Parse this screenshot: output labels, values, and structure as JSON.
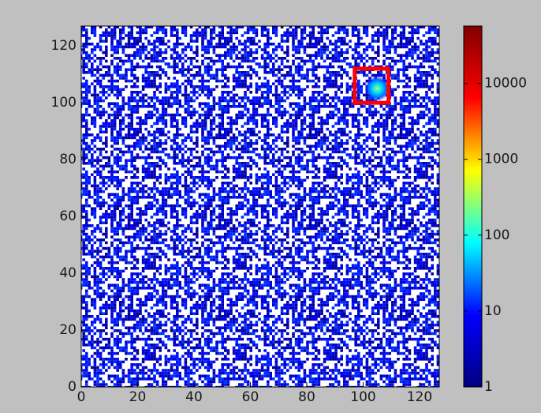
{
  "chart_data": {
    "type": "heatmap",
    "xlim": [
      0,
      127
    ],
    "ylim": [
      0,
      127
    ],
    "xticks": [
      0,
      20,
      40,
      60,
      80,
      100,
      120
    ],
    "yticks": [
      0,
      20,
      40,
      60,
      80,
      100,
      120
    ],
    "colorbar": {
      "scale": "log",
      "lim": [
        1,
        57000
      ],
      "ticks": [
        1,
        10,
        100,
        1000,
        10000
      ],
      "colors": [
        "#00007f",
        "#0000ff",
        "#00ffff",
        "#ffff00",
        "#ff0000",
        "#7f0000"
      ]
    },
    "hotspot": {
      "x": 105,
      "y": 105
    },
    "highlight_box": {
      "x": [
        97,
        109
      ],
      "y": [
        100,
        112
      ],
      "color": "#ff0000"
    }
  }
}
